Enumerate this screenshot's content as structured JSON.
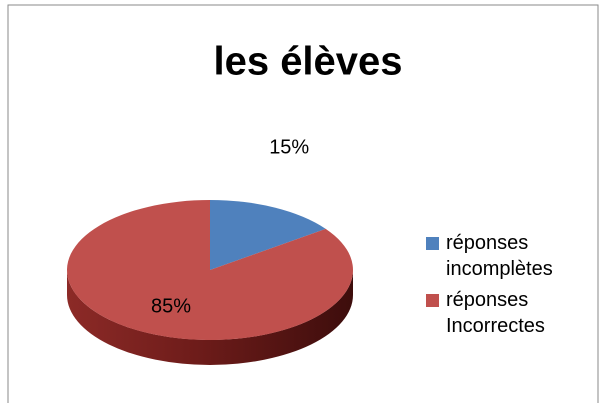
{
  "chart_data": {
    "type": "pie",
    "title": "les élèves",
    "categories": [
      "réponses incomplètes",
      "réponses Incorrectes"
    ],
    "values": [
      15,
      85
    ],
    "value_labels": [
      "15%",
      "85%"
    ],
    "colors": [
      "#4f81bd",
      "#c0504d"
    ],
    "legend": "right"
  }
}
